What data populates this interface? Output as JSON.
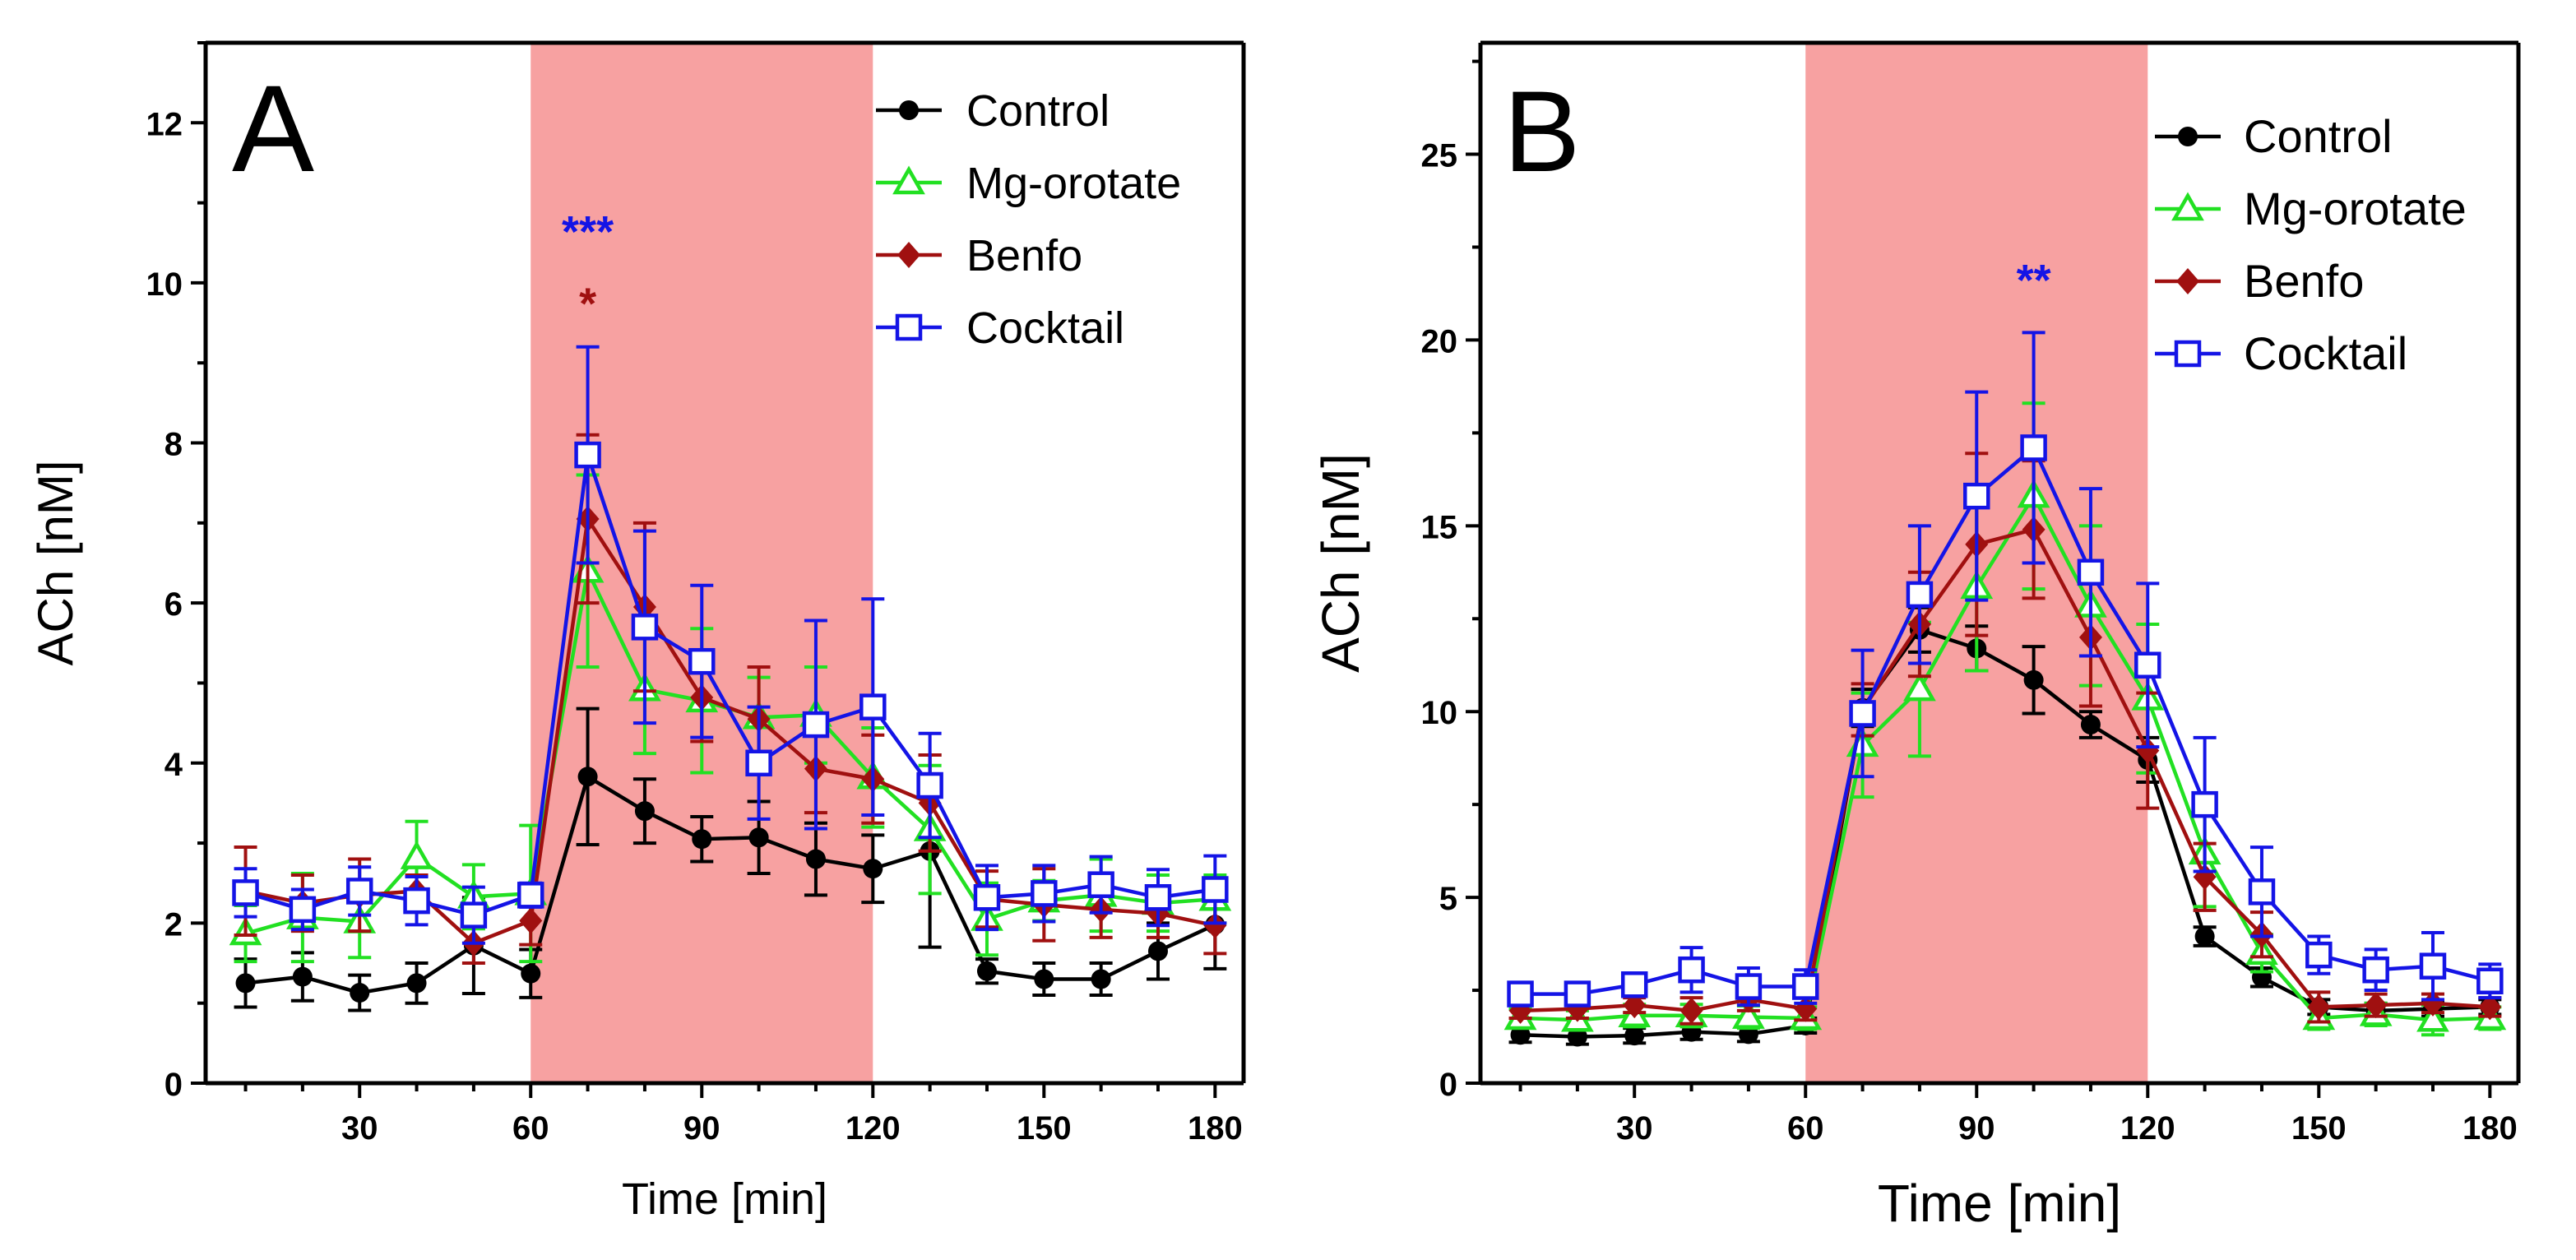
{
  "colors": {
    "stim_band": "#F7A1A1",
    "Control": "#000000",
    "Mg-orotate": "#22E022",
    "Benfo": "#A01010",
    "Cocktail": "#1414E6",
    "axis": "#000000"
  },
  "chart_data": [
    {
      "type": "line",
      "panel_label": "A",
      "xlabel": "Time [min]",
      "ylabel": "ACh [nM]",
      "xlim": [
        3,
        185
      ],
      "ylim": [
        0,
        13
      ],
      "x_ticks": [
        30,
        60,
        90,
        120,
        150,
        180
      ],
      "y_ticks": [
        0,
        2,
        4,
        6,
        8,
        10,
        12
      ],
      "stim_band": [
        60,
        120
      ],
      "legend_position": "top-right",
      "x": [
        10,
        20,
        30,
        40,
        50,
        60,
        70,
        80,
        90,
        100,
        110,
        120,
        130,
        140,
        150,
        160,
        170,
        180
      ],
      "series": [
        {
          "name": "Control",
          "marker": "circle",
          "values": [
            1.25,
            1.33,
            1.13,
            1.25,
            1.72,
            1.37,
            3.83,
            3.4,
            3.05,
            3.07,
            2.8,
            2.68,
            2.9,
            1.4,
            1.3,
            1.3,
            1.65,
            1.98
          ],
          "errors": [
            0.3,
            0.3,
            0.22,
            0.25,
            0.6,
            0.3,
            0.85,
            0.4,
            0.28,
            0.45,
            0.45,
            0.42,
            1.2,
            0.15,
            0.2,
            0.2,
            0.35,
            0.55
          ]
        },
        {
          "name": "Mg-orotate",
          "marker": "triangle",
          "values": [
            1.87,
            2.07,
            2.02,
            2.82,
            2.33,
            2.37,
            6.4,
            4.92,
            4.78,
            4.57,
            4.6,
            3.82,
            3.17,
            2.05,
            2.28,
            2.35,
            2.25,
            2.3
          ],
          "errors": [
            0.35,
            0.55,
            0.45,
            0.45,
            0.4,
            0.85,
            1.2,
            0.8,
            0.9,
            0.5,
            0.6,
            0.62,
            0.8,
            0.45,
            0.25,
            0.45,
            0.35,
            0.3
          ]
        },
        {
          "name": "Benfo",
          "marker": "diamond",
          "values": [
            2.4,
            2.25,
            2.35,
            2.4,
            1.75,
            2.03,
            7.05,
            5.95,
            4.82,
            4.55,
            3.93,
            3.8,
            3.5,
            2.3,
            2.23,
            2.17,
            2.12,
            1.97
          ],
          "errors": [
            0.55,
            0.35,
            0.45,
            0.2,
            0.25,
            0.3,
            1.05,
            1.05,
            0.55,
            0.65,
            0.55,
            0.55,
            0.6,
            0.35,
            0.45,
            0.35,
            0.3,
            0.35
          ]
        },
        {
          "name": "Cocktail",
          "marker": "square",
          "values": [
            2.38,
            2.17,
            2.4,
            2.28,
            2.1,
            2.35,
            7.85,
            5.7,
            5.27,
            4.0,
            4.48,
            4.7,
            3.72,
            2.32,
            2.37,
            2.48,
            2.32,
            2.42
          ],
          "errors": [
            0.3,
            0.25,
            0.3,
            0.3,
            0.35,
            0.15,
            1.35,
            1.2,
            0.95,
            0.7,
            1.3,
            1.35,
            0.65,
            0.4,
            0.35,
            0.35,
            0.35,
            0.42
          ]
        }
      ],
      "annotations": [
        {
          "text": "***",
          "series": "Cocktail",
          "x": 70,
          "y": 10.45
        },
        {
          "text": "*",
          "series": "Benfo",
          "x": 70,
          "y": 9.55
        }
      ]
    },
    {
      "type": "line",
      "panel_label": "B",
      "xlabel": "Time [min]",
      "ylabel": "ACh [nM]",
      "xlim": [
        3,
        185
      ],
      "ylim": [
        0,
        28
      ],
      "x_ticks": [
        30,
        60,
        90,
        120,
        150,
        180
      ],
      "y_ticks": [
        0,
        5,
        10,
        15,
        20,
        25
      ],
      "stim_band": [
        60,
        120
      ],
      "legend_position": "top-right",
      "x": [
        10,
        20,
        30,
        40,
        50,
        60,
        70,
        80,
        90,
        100,
        110,
        120,
        130,
        140,
        150,
        160,
        170,
        180
      ],
      "series": [
        {
          "name": "Control",
          "marker": "circle",
          "values": [
            1.3,
            1.25,
            1.28,
            1.38,
            1.32,
            1.55,
            10.1,
            12.2,
            11.7,
            10.85,
            9.65,
            8.7,
            3.95,
            2.85,
            2.05,
            1.95,
            2.0,
            2.05
          ],
          "errors": [
            0.2,
            0.2,
            0.2,
            0.2,
            0.2,
            0.2,
            0.5,
            0.6,
            0.6,
            0.9,
            0.35,
            0.6,
            0.25,
            0.25,
            0.2,
            0.2,
            0.2,
            0.2
          ]
        },
        {
          "name": "Mg-orotate",
          "marker": "triangle",
          "values": [
            1.75,
            1.7,
            1.82,
            1.82,
            1.78,
            1.75,
            9.1,
            10.6,
            13.35,
            15.8,
            12.85,
            10.35,
            6.2,
            3.5,
            1.75,
            1.85,
            1.7,
            1.75
          ],
          "errors": [
            0.25,
            0.25,
            0.3,
            0.3,
            0.3,
            0.3,
            1.4,
            1.8,
            2.25,
            2.5,
            2.15,
            2.0,
            1.45,
            0.5,
            0.3,
            0.3,
            0.4,
            0.3
          ]
        },
        {
          "name": "Benfo",
          "marker": "diamond",
          "values": [
            1.95,
            2.0,
            2.1,
            1.95,
            2.25,
            2.0,
            10.05,
            12.35,
            14.5,
            14.9,
            12.0,
            8.95,
            5.55,
            4.0,
            2.05,
            2.1,
            2.15,
            2.05
          ],
          "errors": [
            0.2,
            0.25,
            0.2,
            0.35,
            0.3,
            0.3,
            0.7,
            1.4,
            2.45,
            1.85,
            1.85,
            1.55,
            0.9,
            0.6,
            0.4,
            0.3,
            0.25,
            0.25
          ]
        },
        {
          "name": "Cocktail",
          "marker": "square",
          "values": [
            2.4,
            2.4,
            2.65,
            3.05,
            2.6,
            2.6,
            9.95,
            13.15,
            15.8,
            17.1,
            13.75,
            11.25,
            7.5,
            5.15,
            3.45,
            3.05,
            3.15,
            2.75
          ],
          "errors": [
            0.25,
            0.3,
            0.3,
            0.6,
            0.5,
            0.45,
            1.7,
            1.85,
            2.8,
            3.1,
            2.25,
            2.2,
            1.8,
            1.2,
            0.5,
            0.55,
            0.9,
            0.45
          ]
        }
      ],
      "annotations": [
        {
          "text": "**",
          "series": "Cocktail",
          "x": 100,
          "y": 21.2
        }
      ]
    }
  ]
}
